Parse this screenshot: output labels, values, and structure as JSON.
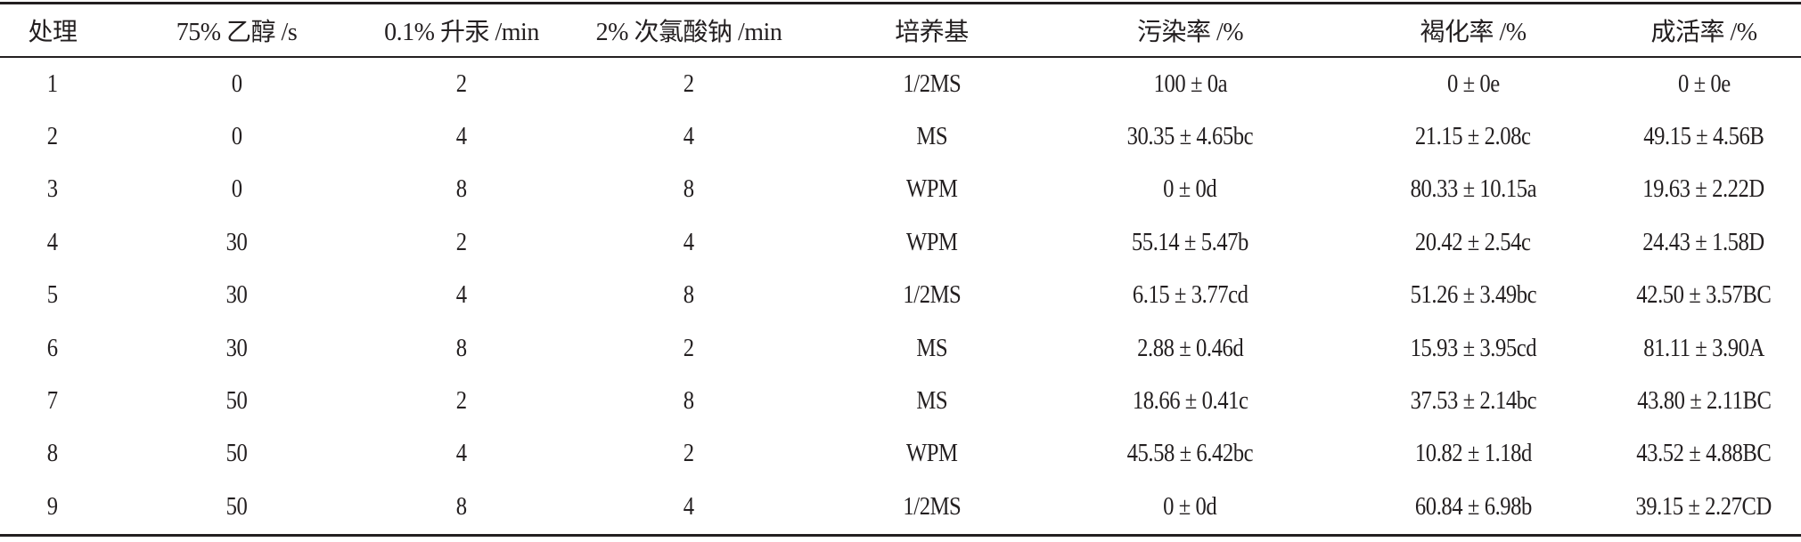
{
  "table": {
    "headers": [
      "处理",
      "75% 乙醇 /s",
      "0.1% 升汞 /min",
      "2% 次氯酸钠 /min",
      "培养基",
      "污染率 /%",
      "褐化率 /%",
      "成活率 /%"
    ],
    "rows": [
      [
        "1",
        "0",
        "2",
        "2",
        "1/2MS",
        "100 ± 0a",
        "0 ± 0e",
        "0 ± 0e"
      ],
      [
        "2",
        "0",
        "4",
        "4",
        "MS",
        "30.35 ± 4.65bc",
        "21.15 ± 2.08c",
        "49.15 ± 4.56B"
      ],
      [
        "3",
        "0",
        "8",
        "8",
        "WPM",
        "0 ± 0d",
        "80.33 ± 10.15a",
        "19.63 ± 2.22D"
      ],
      [
        "4",
        "30",
        "2",
        "4",
        "WPM",
        "55.14 ± 5.47b",
        "20.42 ± 2.54c",
        "24.43 ± 1.58D"
      ],
      [
        "5",
        "30",
        "4",
        "8",
        "1/2MS",
        "6.15 ± 3.77cd",
        "51.26 ± 3.49bc",
        "42.50 ± 3.57BC"
      ],
      [
        "6",
        "30",
        "8",
        "2",
        "MS",
        "2.88 ± 0.46d",
        "15.93 ± 3.95cd",
        "81.11 ± 3.90A"
      ],
      [
        "7",
        "50",
        "2",
        "8",
        "MS",
        "18.66 ± 0.41c",
        "37.53 ± 2.14bc",
        "43.80 ± 2.11BC"
      ],
      [
        "8",
        "50",
        "4",
        "2",
        "WPM",
        "45.58 ± 6.42bc",
        "10.82 ± 1.18d",
        "43.52 ± 4.88BC"
      ],
      [
        "9",
        "50",
        "8",
        "4",
        "1/2MS",
        "0 ± 0d",
        "60.84 ± 6.98b",
        "39.15 ± 2.27CD"
      ]
    ]
  }
}
